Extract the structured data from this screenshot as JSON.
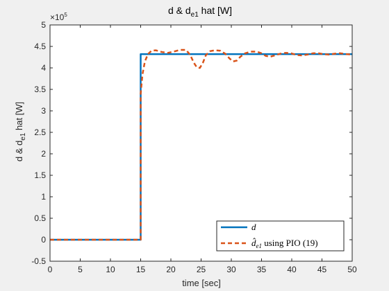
{
  "chart_data": {
    "type": "line",
    "title_main": "d & d",
    "title_sub": "e1",
    "title_tail": " hat [W]",
    "xlabel": "time [sec]",
    "ylabel_main": "d & d",
    "ylabel_sub": "e1",
    "ylabel_tail": " hat [W]",
    "exponent_base": "×10",
    "exponent_power": "5",
    "xlim": [
      0,
      50
    ],
    "ylim": [
      -0.5,
      5
    ],
    "y_scale_factor": 100000,
    "xticks": [
      "0",
      "5",
      "10",
      "15",
      "20",
      "25",
      "30",
      "35",
      "40",
      "45",
      "50"
    ],
    "yticks": [
      "-0.5",
      "0",
      "0.5",
      "1",
      "1.5",
      "2",
      "2.5",
      "3",
      "3.5",
      "4",
      "4.5",
      "5"
    ],
    "grid": false,
    "legend_location": "bottom-right",
    "series": [
      {
        "name": "d",
        "color": "#0072BD",
        "style": "solid",
        "x": [
          0,
          15,
          15,
          50
        ],
        "y": [
          0,
          0,
          4.32,
          4.32
        ]
      },
      {
        "name": "d̂e1 using PIO (19)",
        "legend_hat": "d̂",
        "legend_sub": "e1",
        "legend_tail": " using PIO (19)",
        "color": "#D95319",
        "style": "dashed",
        "x": [
          0,
          15,
          15,
          15.3,
          15.7,
          16.2,
          16.8,
          17.5,
          18.5,
          19.5,
          20.5,
          21.5,
          22.5,
          23.2,
          23.8,
          24.3,
          24.8,
          25.3,
          25.8,
          26.5,
          27.3,
          28.2,
          29.0,
          29.7,
          30.3,
          30.9,
          31.5,
          32.3,
          33.2,
          34.2,
          35.0,
          35.7,
          36.4,
          37.2,
          38.1,
          39.0,
          39.9,
          40.8,
          41.7,
          42.6,
          43.5,
          44.4,
          45.3,
          46.2,
          47.1,
          48.0,
          49.0,
          50
        ],
        "y": [
          0,
          0,
          3.4,
          3.85,
          4.15,
          4.32,
          4.4,
          4.41,
          4.37,
          4.35,
          4.38,
          4.42,
          4.42,
          4.3,
          4.12,
          4.01,
          4.0,
          4.12,
          4.3,
          4.39,
          4.41,
          4.4,
          4.33,
          4.22,
          4.15,
          4.17,
          4.26,
          4.34,
          4.38,
          4.38,
          4.34,
          4.28,
          4.26,
          4.29,
          4.33,
          4.35,
          4.34,
          4.3,
          4.29,
          4.31,
          4.34,
          4.34,
          4.32,
          4.31,
          4.33,
          4.34,
          4.32,
          4.31
        ]
      }
    ]
  }
}
